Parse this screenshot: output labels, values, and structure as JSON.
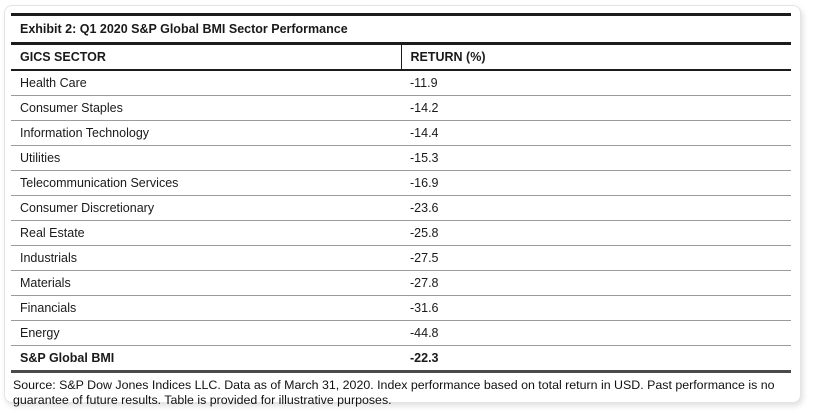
{
  "exhibit": {
    "title": "Exhibit 2: Q1 2020 S&P Global BMI Sector Performance"
  },
  "table": {
    "columns": [
      "GICS SECTOR",
      "RETURN (%)"
    ],
    "rows": [
      {
        "sector": "Health Care",
        "return": "-11.9",
        "bold": false
      },
      {
        "sector": "Consumer Staples",
        "return": "-14.2",
        "bold": false
      },
      {
        "sector": "Information Technology",
        "return": "-14.4",
        "bold": false
      },
      {
        "sector": "Utilities",
        "return": "-15.3",
        "bold": false
      },
      {
        "sector": "Telecommunication Services",
        "return": "-16.9",
        "bold": false
      },
      {
        "sector": "Consumer Discretionary",
        "return": "-23.6",
        "bold": false
      },
      {
        "sector": "Real Estate",
        "return": "-25.8",
        "bold": false
      },
      {
        "sector": "Industrials",
        "return": "-27.5",
        "bold": false
      },
      {
        "sector": "Materials",
        "return": "-27.8",
        "bold": false
      },
      {
        "sector": "Financials",
        "return": "-31.6",
        "bold": false
      },
      {
        "sector": "Energy",
        "return": "-44.8",
        "bold": false
      },
      {
        "sector": "S&P Global BMI",
        "return": "-22.3",
        "bold": true
      }
    ]
  },
  "source_note": "Source: S&P Dow Jones Indices LLC. Data as of March 31, 2020. Index performance based on total return in USD. Past performance is no guarantee of future results. Table is provided for illustrative purposes.",
  "colors": {
    "heavy_rule": "#1c1c1c",
    "total_rule": "#4a4a4a",
    "row_separator": "#9b9b9b",
    "card_border": "#e4e4e4",
    "text": "#1a1a1a"
  },
  "chart_data": {
    "type": "table",
    "title": "Exhibit 2: Q1 2020 S&P Global BMI Sector Performance",
    "columns": [
      "GICS SECTOR",
      "RETURN (%)"
    ],
    "categories": [
      "Health Care",
      "Consumer Staples",
      "Information Technology",
      "Utilities",
      "Telecommunication Services",
      "Consumer Discretionary",
      "Real Estate",
      "Industrials",
      "Materials",
      "Financials",
      "Energy",
      "S&P Global BMI"
    ],
    "values": [
      -11.9,
      -14.2,
      -14.4,
      -15.3,
      -16.9,
      -23.6,
      -25.8,
      -27.5,
      -27.8,
      -31.6,
      -44.8,
      -22.3
    ]
  }
}
